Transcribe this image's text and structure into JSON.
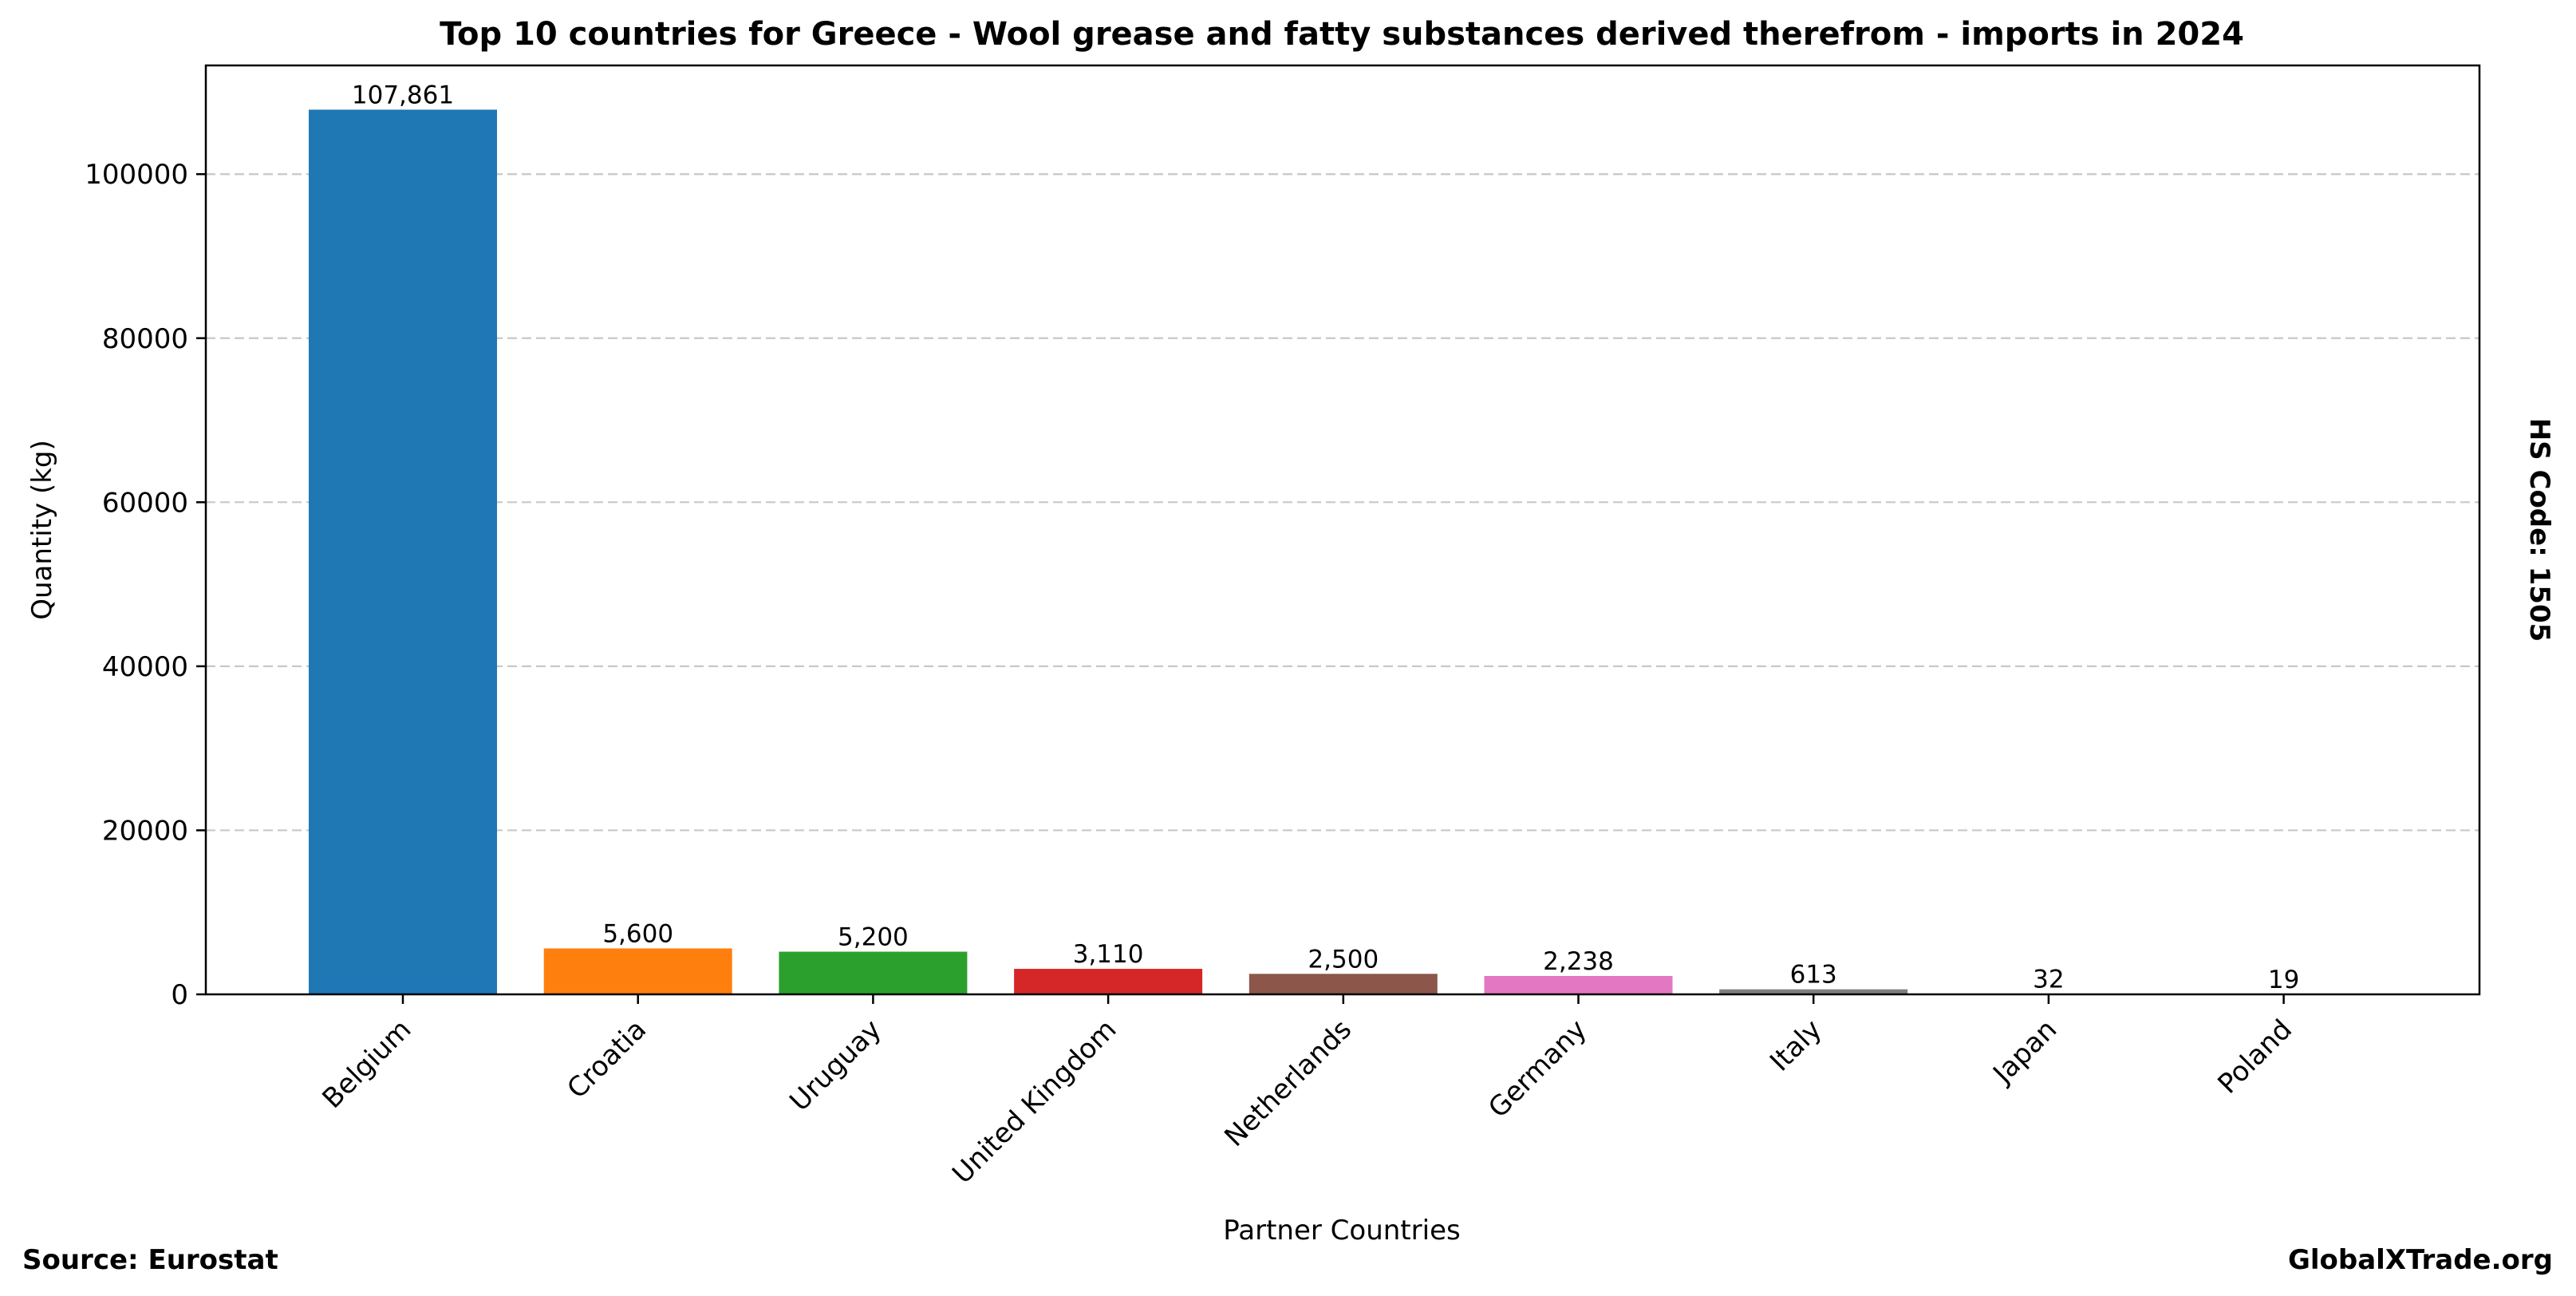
{
  "chart_data": {
    "type": "bar",
    "title": "Top 10 countries for Greece - Wool grease and fatty substances derived therefrom - imports in 2024",
    "xlabel": "Partner Countries",
    "ylabel": "Quantity (kg)",
    "categories": [
      "Belgium",
      "Croatia",
      "Uruguay",
      "United Kingdom",
      "Netherlands",
      "Germany",
      "Italy",
      "Japan",
      "Poland"
    ],
    "values": [
      107861,
      5600,
      5200,
      3110,
      2500,
      2238,
      613,
      32,
      19
    ],
    "value_labels": [
      "107,861",
      "5,600",
      "5,200",
      "3,110",
      "2,500",
      "2,238",
      "613",
      "32",
      "19"
    ],
    "colors": [
      "#1f77b4",
      "#ff7f0e",
      "#2ca02c",
      "#d62728",
      "#8c564b",
      "#e377c2",
      "#7f7f7f",
      "#bcbd22",
      "#17becf"
    ],
    "ylim": [
      0,
      113254
    ],
    "yticks": [
      0,
      20000,
      40000,
      60000,
      80000,
      100000
    ],
    "ytick_labels": [
      "0",
      "20000",
      "40000",
      "60000",
      "80000",
      "100000"
    ],
    "grid": "y-dashed",
    "legend": "none"
  },
  "side_label": "HS Code: 1505",
  "footer": {
    "source": "Source: Eurostat",
    "brand": "GlobalXTrade.org"
  }
}
